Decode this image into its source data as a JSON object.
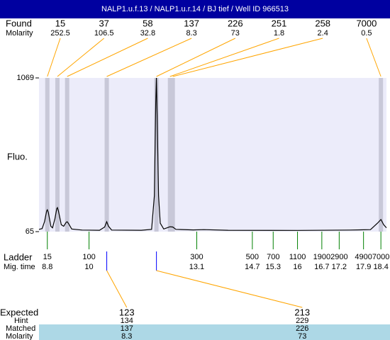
{
  "header": {
    "title": "NALP1.u.f.13 / NALP1.u.r.14 / BJ tief / Well ID 966513"
  },
  "plot": {
    "type": "line",
    "ylabel": "Fluo.",
    "ylim": [
      65,
      1069
    ],
    "yticks": [
      65,
      1069
    ],
    "xlim": [
      8.56,
      18.56
    ],
    "trace": {
      "color": "#000000",
      "x": [
        8.56,
        8.65,
        8.72,
        8.78,
        8.8,
        8.83,
        8.9,
        8.95,
        9.02,
        9.07,
        9.09,
        9.12,
        9.2,
        9.27,
        9.34,
        9.37,
        9.41,
        9.5,
        9.8,
        10.3,
        10.45,
        10.51,
        10.56,
        10.65,
        11.5,
        11.8,
        11.88,
        11.92,
        11.94,
        11.97,
        12.0,
        12.05,
        12.15,
        12.25,
        12.33,
        12.41,
        12.5,
        13.0,
        13.3,
        14,
        16,
        17.5,
        18.1,
        18.3,
        18.4,
        18.48,
        18.56
      ],
      "y": [
        80,
        85,
        130,
        200,
        208,
        190,
        100,
        90,
        150,
        215,
        222,
        200,
        110,
        100,
        125,
        130,
        118,
        82,
        75,
        74,
        95,
        130,
        100,
        75,
        74,
        80,
        300,
        900,
        1069,
        700,
        300,
        120,
        82,
        90,
        97,
        95,
        80,
        76,
        78,
        74,
        73,
        75,
        78,
        120,
        144,
        110,
        90
      ]
    }
  },
  "found": {
    "label": "Found",
    "molarity_label": "Molarity",
    "sizes": [
      15,
      37,
      58,
      137,
      226,
      251,
      258,
      7000
    ],
    "molarity": [
      252.5,
      106.5,
      32.8,
      8.3,
      73,
      1.8,
      2.4,
      0.5
    ],
    "times": [
      8.8,
      9.09,
      9.37,
      10.51,
      11.94,
      12.33,
      12.41,
      18.4
    ]
  },
  "ladder": {
    "label": "Ladder",
    "time_label": "Mig. time",
    "sizes": [
      15,
      100,
      300,
      500,
      700,
      1100,
      1900,
      2900,
      4900,
      7000
    ],
    "times": [
      8.8,
      10,
      13.1,
      14.7,
      15.3,
      16,
      16.7,
      17.2,
      17.9,
      18.4
    ]
  },
  "expected": {
    "labels": [
      "Expected",
      "Hint",
      "Matched",
      "Molarity"
    ],
    "expected": [
      123,
      213
    ],
    "hint": [
      134,
      229
    ],
    "matched": [
      137,
      226
    ],
    "molarity": [
      8.3,
      73
    ],
    "times": [
      10.51,
      11.94
    ]
  }
}
